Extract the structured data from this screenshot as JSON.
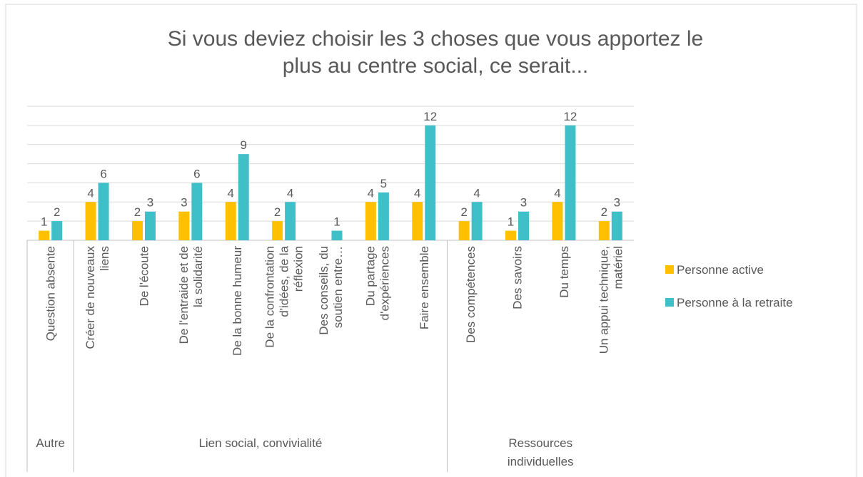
{
  "chart_data": {
    "type": "bar",
    "title": "Si vous deviez choisir les 3 choses que vous apportez le plus au centre social, ce serait...",
    "categories": [
      "Question absente",
      "Créer de nouveaux liens",
      "De l'écoute",
      "De l'entraide et de la solidarité",
      "De la bonne humeur",
      "De la confrontation d'idées, de la réflexion",
      "Des conseils, du soutien entre…",
      "Du partage d'expériences",
      "Faire ensemble",
      "Des compétences",
      "Des savoirs",
      "Du temps",
      "Un appui technique, matériel"
    ],
    "groups": [
      {
        "name": "Autre",
        "size": 1
      },
      {
        "name": "Lien social, convivialité",
        "size": 8
      },
      {
        "name": "Ressources individuelles",
        "size": 4
      }
    ],
    "series": [
      {
        "name": "Personne active",
        "color": "#ffc000",
        "values": [
          1,
          4,
          2,
          3,
          4,
          2,
          null,
          4,
          4,
          2,
          1,
          4,
          2
        ]
      },
      {
        "name": "Personne à la retraite",
        "color": "#3fbfc8",
        "values": [
          2,
          6,
          3,
          6,
          9,
          4,
          1,
          5,
          12,
          4,
          3,
          12,
          3
        ]
      }
    ],
    "ylim": [
      0,
      14
    ],
    "yticks": [
      0,
      2,
      4,
      6,
      8,
      10,
      12,
      14
    ],
    "grid": true,
    "legend": "right"
  }
}
